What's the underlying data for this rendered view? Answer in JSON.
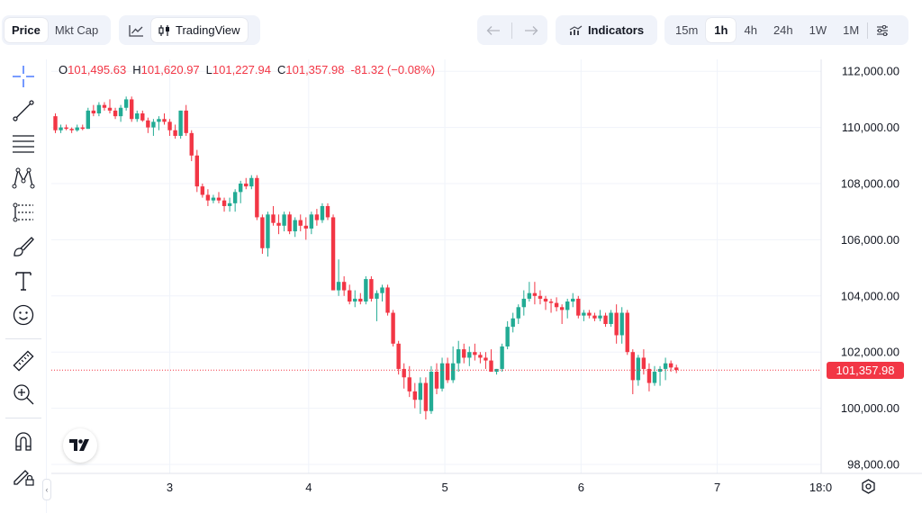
{
  "toolbar": {
    "data_type_options": [
      "Price",
      "Mkt Cap"
    ],
    "data_type_selected": "Price",
    "chart_brand_label": "TradingView",
    "indicators_label": "Indicators",
    "intervals": [
      "15m",
      "1h",
      "4h",
      "24h",
      "1W",
      "1M"
    ],
    "interval_selected": "1h"
  },
  "icons": {
    "chart_style": "line-chart-icon",
    "brand": "candlestick-icon",
    "undo": "arrow-left-icon",
    "redo": "arrow-right-icon",
    "indicators": "indicators-icon",
    "settings": "sliders-icon"
  },
  "left_tools": [
    "crosshair-icon",
    "trend-line-icon",
    "fib-retracement-icon",
    "pattern-icon",
    "prediction-icon",
    "brush-icon",
    "text-icon",
    "emoji-icon",
    "ruler-icon",
    "zoom-in-icon",
    "magnet-icon",
    "lock-drawings-icon"
  ],
  "legend": {
    "open_key": "O",
    "open": "101,495.63",
    "high_key": "H",
    "high": "101,620.97",
    "low_key": "L",
    "low": "101,227.94",
    "close_key": "C",
    "close": "101,357.98",
    "change": "-81.32 (−0.08%)"
  },
  "colors": {
    "up": "#22ab94",
    "down": "#f23645",
    "grid": "#f0f3fa",
    "price_line": "#f23645"
  },
  "chart_data": {
    "type": "candlestick",
    "y_ticks": [
      "112,000.00",
      "110,000.00",
      "108,000.00",
      "106,000.00",
      "104,000.00",
      "102,000.00",
      "100,000.00",
      "98,000.00"
    ],
    "y_tick_values": [
      112000,
      110000,
      108000,
      106000,
      104000,
      102000,
      100000,
      98000
    ],
    "x_ticks": [
      "3",
      "4",
      "5",
      "6",
      "7",
      "18:0"
    ],
    "x_tick_index": [
      21,
      46.5,
      71.5,
      96.5,
      121.5,
      140.5
    ],
    "last_price": 101357.98,
    "last_price_label": "101,357.98",
    "ohlc": [
      [
        110400,
        110500,
        109800,
        109900
      ],
      [
        109900,
        110100,
        109800,
        110000
      ],
      [
        110000,
        110100,
        109900,
        109950
      ],
      [
        109950,
        110000,
        109800,
        109900
      ],
      [
        109900,
        110100,
        109850,
        110000
      ],
      [
        110000,
        110100,
        109900,
        109950
      ],
      [
        109950,
        110700,
        109950,
        110600
      ],
      [
        110600,
        110800,
        110400,
        110500
      ],
      [
        110500,
        110900,
        110400,
        110800
      ],
      [
        110800,
        110900,
        110600,
        110700
      ],
      [
        110700,
        111000,
        110500,
        110600
      ],
      [
        110600,
        110700,
        110300,
        110400
      ],
      [
        110400,
        110800,
        110200,
        110700
      ],
      [
        110700,
        111100,
        110600,
        111000
      ],
      [
        111000,
        111100,
        110200,
        110300
      ],
      [
        110300,
        110600,
        110200,
        110500
      ],
      [
        110500,
        110600,
        110200,
        110250
      ],
      [
        110250,
        110350,
        109800,
        110000
      ],
      [
        110000,
        110300,
        109700,
        110200
      ],
      [
        110200,
        110400,
        109900,
        110300
      ],
      [
        110300,
        110500,
        110100,
        110200
      ],
      [
        110200,
        110300,
        109700,
        109900
      ],
      [
        109900,
        110100,
        109600,
        109700
      ],
      [
        109700,
        110600,
        109600,
        110600
      ],
      [
        110600,
        110800,
        109700,
        109800
      ],
      [
        109800,
        109900,
        108800,
        109000
      ],
      [
        109000,
        109200,
        107700,
        107900
      ],
      [
        107900,
        108000,
        107500,
        107600
      ],
      [
        107600,
        107800,
        107200,
        107400
      ],
      [
        107400,
        107600,
        107300,
        107500
      ],
      [
        107500,
        107700,
        107300,
        107400
      ],
      [
        107400,
        107500,
        107000,
        107200
      ],
      [
        107200,
        107500,
        107000,
        107300
      ],
      [
        107300,
        107800,
        107000,
        107700
      ],
      [
        107700,
        108100,
        107300,
        108000
      ],
      [
        108000,
        108200,
        107800,
        107900
      ],
      [
        107900,
        108300,
        107800,
        108200
      ],
      [
        108200,
        108300,
        106700,
        106800
      ],
      [
        106800,
        106900,
        105500,
        105700
      ],
      [
        105700,
        107000,
        105400,
        106900
      ],
      [
        106900,
        107200,
        106500,
        106600
      ],
      [
        106600,
        106900,
        106200,
        106500
      ],
      [
        106500,
        107000,
        106300,
        106900
      ],
      [
        106900,
        107000,
        106200,
        106300
      ],
      [
        106300,
        106800,
        106100,
        106700
      ],
      [
        106700,
        106900,
        106300,
        106500
      ],
      [
        106500,
        106800,
        106000,
        106400
      ],
      [
        106400,
        107000,
        106200,
        106900
      ],
      [
        106900,
        107100,
        106500,
        106700
      ],
      [
        106700,
        107300,
        106600,
        107200
      ],
      [
        107200,
        107300,
        106700,
        106800
      ],
      [
        106800,
        106900,
        104200,
        104200
      ],
      [
        104200,
        105300,
        104000,
        104500
      ],
      [
        104500,
        104700,
        104000,
        104200
      ],
      [
        104200,
        104400,
        103700,
        103800
      ],
      [
        103800,
        104200,
        103600,
        103900
      ],
      [
        103900,
        104100,
        103700,
        103800
      ],
      [
        103800,
        104700,
        103700,
        104600
      ],
      [
        104600,
        104700,
        103800,
        103900
      ],
      [
        103900,
        104200,
        103100,
        104100
      ],
      [
        104100,
        104400,
        103800,
        104300
      ],
      [
        104300,
        104400,
        103300,
        103400
      ],
      [
        103400,
        103500,
        102200,
        102300
      ],
      [
        102300,
        102400,
        101200,
        101400
      ],
      [
        101400,
        101600,
        100700,
        101100
      ],
      [
        101100,
        101500,
        100400,
        100600
      ],
      [
        100600,
        100900,
        100000,
        100300
      ],
      [
        100300,
        101100,
        99800,
        100900
      ],
      [
        100900,
        101100,
        99600,
        99900
      ],
      [
        99900,
        101500,
        99800,
        101300
      ],
      [
        101300,
        101600,
        100500,
        100700
      ],
      [
        100700,
        101800,
        100600,
        101600
      ],
      [
        101600,
        101800,
        100900,
        101000
      ],
      [
        101000,
        102200,
        100900,
        101600
      ],
      [
        101600,
        102400,
        101300,
        102100
      ],
      [
        102100,
        102300,
        101600,
        101800
      ],
      [
        101800,
        102200,
        101500,
        102000
      ],
      [
        102000,
        102300,
        101700,
        101900
      ],
      [
        101900,
        102000,
        101600,
        101800
      ],
      [
        101800,
        102000,
        101400,
        101700
      ],
      [
        101700,
        102100,
        101400,
        101300
      ],
      [
        101300,
        101400,
        101200,
        101400
      ],
      [
        101400,
        102300,
        101300,
        102200
      ],
      [
        102200,
        103100,
        102100,
        102900
      ],
      [
        102900,
        103400,
        102700,
        103200
      ],
      [
        103200,
        103700,
        103000,
        103600
      ],
      [
        103600,
        104200,
        103300,
        103900
      ],
      [
        103900,
        104500,
        103800,
        104100
      ],
      [
        104100,
        104500,
        103700,
        104000
      ],
      [
        104000,
        104200,
        103700,
        103900
      ],
      [
        103900,
        104000,
        103500,
        103800
      ],
      [
        103800,
        103900,
        103400,
        103750
      ],
      [
        103750,
        103950,
        103450,
        103600
      ],
      [
        103600,
        103700,
        103000,
        103500
      ],
      [
        103500,
        103900,
        103200,
        103800
      ],
      [
        103800,
        104100,
        103600,
        103900
      ],
      [
        103900,
        104000,
        103200,
        103300
      ],
      [
        103300,
        103500,
        103100,
        103400
      ],
      [
        103400,
        103500,
        103200,
        103300
      ],
      [
        103300,
        103400,
        103100,
        103200
      ],
      [
        103200,
        103500,
        103100,
        103300
      ],
      [
        103300,
        103400,
        102900,
        103000
      ],
      [
        103000,
        103500,
        102900,
        103400
      ],
      [
        103400,
        103700,
        102300,
        102600
      ],
      [
        102600,
        103600,
        102300,
        103400
      ],
      [
        103400,
        103500,
        101900,
        102000
      ],
      [
        102000,
        102100,
        100500,
        101000
      ],
      [
        101000,
        101900,
        100800,
        101800
      ],
      [
        101800,
        102100,
        101200,
        101400
      ],
      [
        101400,
        101600,
        100600,
        100900
      ],
      [
        100900,
        101500,
        100800,
        101300
      ],
      [
        101300,
        101500,
        100800,
        101400
      ],
      [
        101400,
        101800,
        101000,
        101600
      ],
      [
        101600,
        101700,
        101300,
        101450
      ],
      [
        101450,
        101550,
        101250,
        101360
      ]
    ]
  }
}
